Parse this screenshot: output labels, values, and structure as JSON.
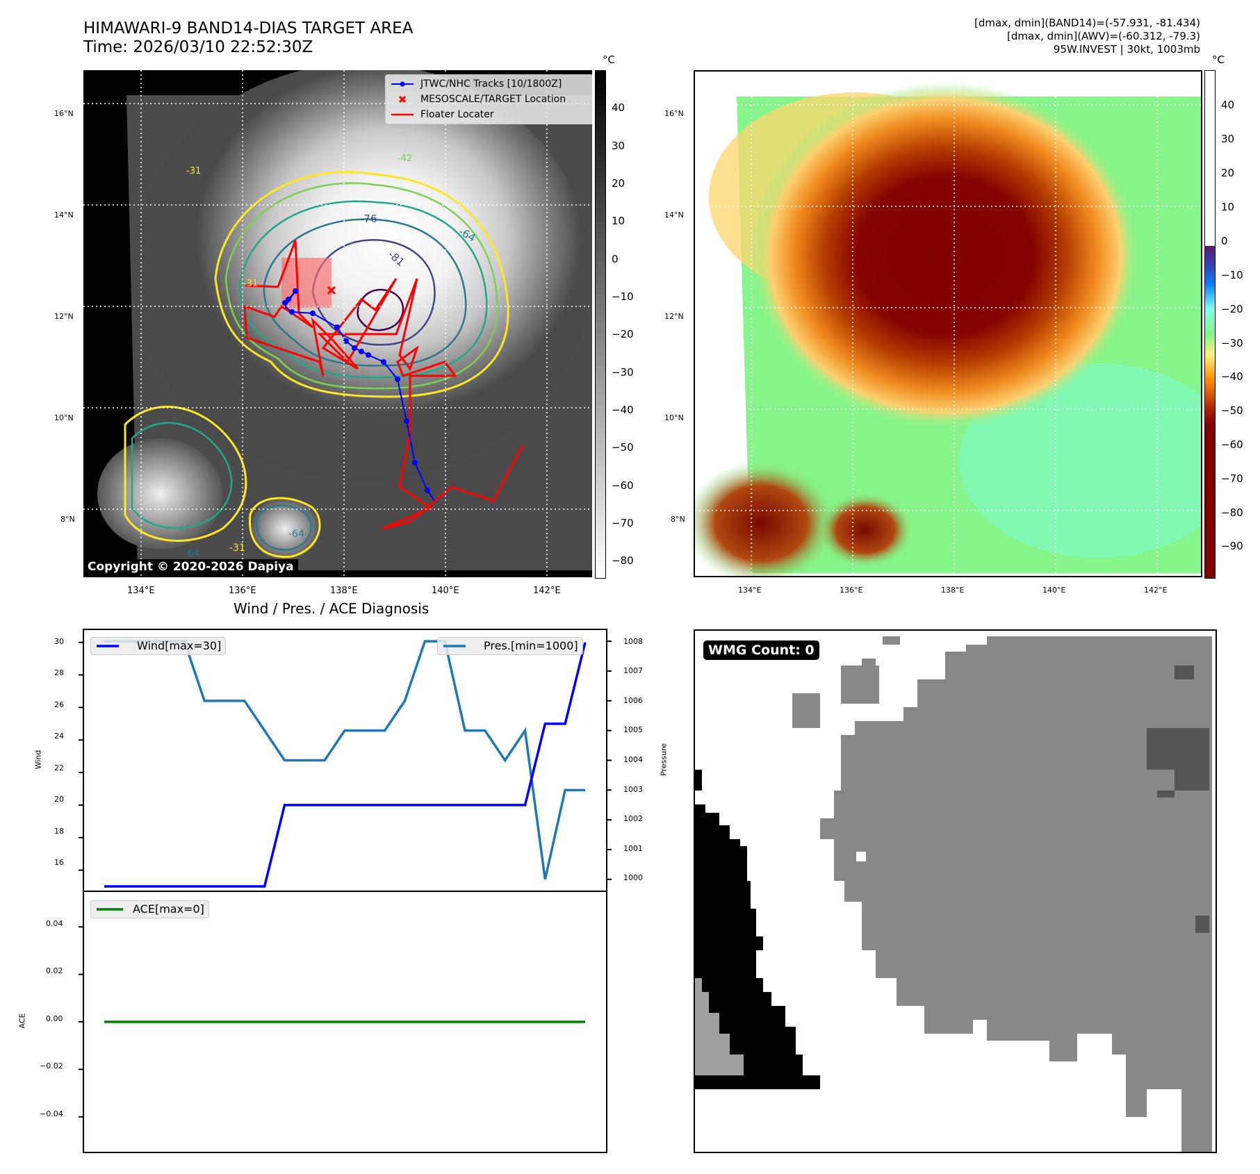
{
  "header": {
    "title_line1": "HIMAWARI-9 BAND14-DIAS TARGET AREA",
    "title_line2": "Time: 2026/03/10 22:52:30Z",
    "stats_line1": "[dmax, dmin](BAND14)=(-57.931, -81.434)",
    "stats_line2": "[dmax, dmin](AWV)=(-60.312, -79.3)",
    "stats_line3": "95W.INVEST | 30kt, 1003mb"
  },
  "map_axes": {
    "lat_ticks": [
      "16°N",
      "14°N",
      "12°N",
      "10°N",
      "8°N"
    ],
    "lon_ticks": [
      "134°E",
      "136°E",
      "138°E",
      "140°E",
      "142°E"
    ]
  },
  "ir_panel": {
    "legend": {
      "tracks": "JTWC/NHC Tracks [10/1800Z]",
      "target": "MESOSCALE/TARGET Location",
      "floater": "Floater Locater"
    },
    "contour_labels": [
      "-31",
      "-42",
      "-64",
      "-76",
      "-81",
      "-31",
      "-64",
      "-31",
      "-64"
    ],
    "copyright": "Copyright © 2020-2026 Dapiya",
    "colorbar": {
      "unit": "°C",
      "ticks": [
        "40",
        "30",
        "20",
        "10",
        "0",
        "−10",
        "−20",
        "−30",
        "−40",
        "−50",
        "−60",
        "−70",
        "−80"
      ]
    },
    "colors": {
      "track": "#0000ff",
      "floater": "#ff0000",
      "target": "#ff0000"
    }
  },
  "awv_panel": {
    "colorbar": {
      "unit": "°C",
      "ticks": [
        "40",
        "30",
        "20",
        "10",
        "0",
        "−10",
        "−20",
        "−30",
        "−40",
        "−50",
        "−60",
        "−70",
        "−80",
        "−90"
      ]
    }
  },
  "wmg_panel": {
    "badge": "WMG Count: 0"
  },
  "chart_data": [
    {
      "type": "line",
      "title": "Wind / Pres. / ACE Diagnosis",
      "ylabel": "Wind",
      "y2label": "Pressure",
      "ylim": [
        14.7,
        30.8
      ],
      "y2lim": [
        999.6,
        1008.4
      ],
      "yticks": [
        "30",
        "28",
        "26",
        "24",
        "22",
        "20",
        "18",
        "16"
      ],
      "y2ticks": [
        "1008",
        "1007",
        "1006",
        "1005",
        "1004",
        "1003",
        "1002",
        "1001",
        "1000"
      ],
      "x": [
        0,
        1,
        2,
        3,
        4,
        5,
        6,
        7,
        8,
        9,
        10,
        11,
        12,
        13,
        14,
        15,
        16,
        17,
        18,
        19,
        20,
        21,
        22,
        23,
        24
      ],
      "series": [
        {
          "name": "Wind[max=30]",
          "axis": "left",
          "color": "#0000ff",
          "values": [
            15,
            15,
            15,
            15,
            15,
            15,
            15,
            15,
            15,
            20,
            20,
            20,
            20,
            20,
            20,
            20,
            20,
            20,
            20,
            20,
            20,
            20,
            25,
            25,
            30
          ]
        },
        {
          "name": "Pres.[min=1000]",
          "axis": "right",
          "color": "#1f77b4",
          "values": [
            1008,
            1008,
            1008,
            1008,
            1008,
            1006,
            1006,
            1006,
            1005,
            1004,
            1004,
            1004,
            1005,
            1005,
            1005,
            1006,
            1008,
            1008,
            1005,
            1005,
            1004,
            1005,
            1000,
            1003,
            1003
          ]
        }
      ]
    },
    {
      "type": "line",
      "ylabel": "ACE",
      "ylim": [
        -0.055,
        0.055
      ],
      "yticks": [
        "0.04",
        "0.02",
        "0.00",
        "−0.02",
        "−0.04"
      ],
      "x": [
        0,
        24
      ],
      "series": [
        {
          "name": "ACE[max=0]",
          "color": "#008000",
          "values": [
            0,
            0
          ]
        }
      ]
    }
  ]
}
